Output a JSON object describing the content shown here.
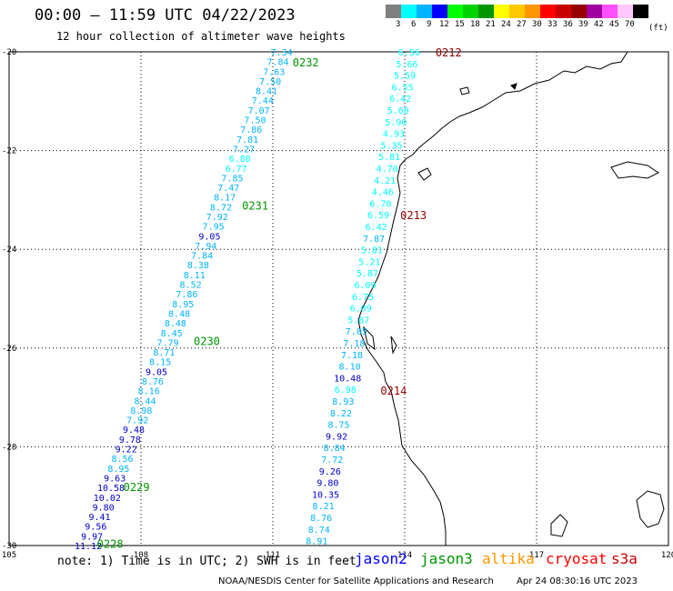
{
  "title": "00:00 — 11:59 UTC 04/22/2023",
  "subtitle": "12 hour collection of altimeter wave heights",
  "legend": {
    "colors": [
      "#808080",
      "#00ffff",
      "#00b4ff",
      "#0000ff",
      "#00ff00",
      "#00d200",
      "#009600",
      "#ffff00",
      "#ffc800",
      "#ff9600",
      "#ff0000",
      "#c80000",
      "#960000",
      "#a000a0",
      "#ff50ff",
      "#ffc8ff",
      "#000000"
    ],
    "labels": [
      "3",
      "6",
      "9",
      "12",
      "15",
      "18",
      "21",
      "24",
      "27",
      "30",
      "33",
      "36",
      "39",
      "42",
      "45",
      "70"
    ],
    "unit": "(ft)"
  },
  "axes": {
    "lon_ticks": [
      "105",
      "108",
      "111",
      "114",
      "117",
      "120"
    ],
    "lat_ticks": [
      "-20",
      "-22",
      "-24",
      "-26",
      "-28",
      "-30"
    ],
    "lon_range": [
      105,
      120
    ],
    "lat_range": [
      -30,
      -20
    ],
    "grid": "dotted"
  },
  "track_colors": {
    "band_6_9": "#00ffff",
    "band_9_12": "#00b4ff",
    "band_12_15": "#0000c8"
  },
  "passes": [
    {
      "label": "0232",
      "color": "#009600",
      "lon": 111.45,
      "lat": -20.2
    },
    {
      "label": "0231",
      "color": "#009600",
      "lon": 110.3,
      "lat": -23.1
    },
    {
      "label": "0230",
      "color": "#009600",
      "lon": 109.2,
      "lat": -25.85
    },
    {
      "label": "0229",
      "color": "#009600",
      "lon": 107.6,
      "lat": -28.8
    },
    {
      "label": "0228",
      "color": "#009600",
      "lon": 107.0,
      "lat": -29.95
    },
    {
      "label": "0212",
      "color": "#960000",
      "lon": 114.7,
      "lat": -20.0
    },
    {
      "label": "0213",
      "color": "#960000",
      "lon": 113.9,
      "lat": -23.3
    },
    {
      "label": "0214",
      "color": "#960000",
      "lon": 113.45,
      "lat": -26.85
    }
  ],
  "track_west": {
    "lon_start": 111.2,
    "lat_start": -20.0,
    "lon_end": 106.8,
    "lat_end": -30.0,
    "values": [
      "7.34",
      "7.84",
      "7.63",
      "7.50",
      "8.41",
      "7.44",
      "7.07",
      "7.50",
      "7.86",
      "7.81",
      "7.27",
      "6.88",
      "6.77",
      "7.85",
      "7.47",
      "8.17",
      "8.72",
      "7.92",
      "7.95",
      "9.05",
      "7.94",
      "7.84",
      "8.38",
      "8.11",
      "8.52",
      "7.86",
      "8.95",
      "8.48",
      "8.48",
      "8.45",
      "7.79",
      "8.71",
      "8.15",
      "9.05",
      "8.76",
      "8.16",
      "8.44",
      "8.98",
      "7.92",
      "9.48",
      "9.78",
      "9.22",
      "8.56",
      "8.95",
      "9.63",
      "10.58",
      "10.02",
      "9.80",
      "9.41",
      "9.56",
      "9.97",
      "11.12"
    ]
  },
  "track_east": {
    "lon_start": 114.1,
    "lat_start": -20.0,
    "lon_end": 112.0,
    "lat_end": -29.9,
    "values": [
      "6.56",
      "5.66",
      "5.59",
      "6.55",
      "6.42",
      "5.60",
      "5.90",
      "4.93",
      "5.35",
      "5.81",
      "4.70",
      "4.21",
      "4.46",
      "6.70",
      "6.59",
      "6.42",
      "7.87",
      "5.81",
      "5.21",
      "5.87",
      "6.09",
      "6.75",
      "6.09",
      "5.87",
      "7.05",
      "7.18",
      "7.18",
      "8.10",
      "10.48",
      "6.98",
      "8.93",
      "8.22",
      "8.75",
      "9.92",
      "8.84",
      "7.72",
      "9.26",
      "9.80",
      "10.35",
      "8.21",
      "8.76",
      "8.74",
      "8.91"
    ]
  },
  "note": "note: 1) Time is in UTC; 2) SWH is in feet",
  "missions": [
    {
      "name": "jason2",
      "color": "#0000ff"
    },
    {
      "name": "jason3",
      "color": "#009600"
    },
    {
      "name": "altika",
      "color": "#ff9600"
    },
    {
      "name": "cryosat",
      "color": "#ff0000"
    },
    {
      "name": "s3a",
      "color": "#c80000"
    }
  ],
  "credit": "NOAA/NESDIS Center for Satellite Applications and Research",
  "timestamp": "Apr 24 08:30:16 UTC 2023"
}
